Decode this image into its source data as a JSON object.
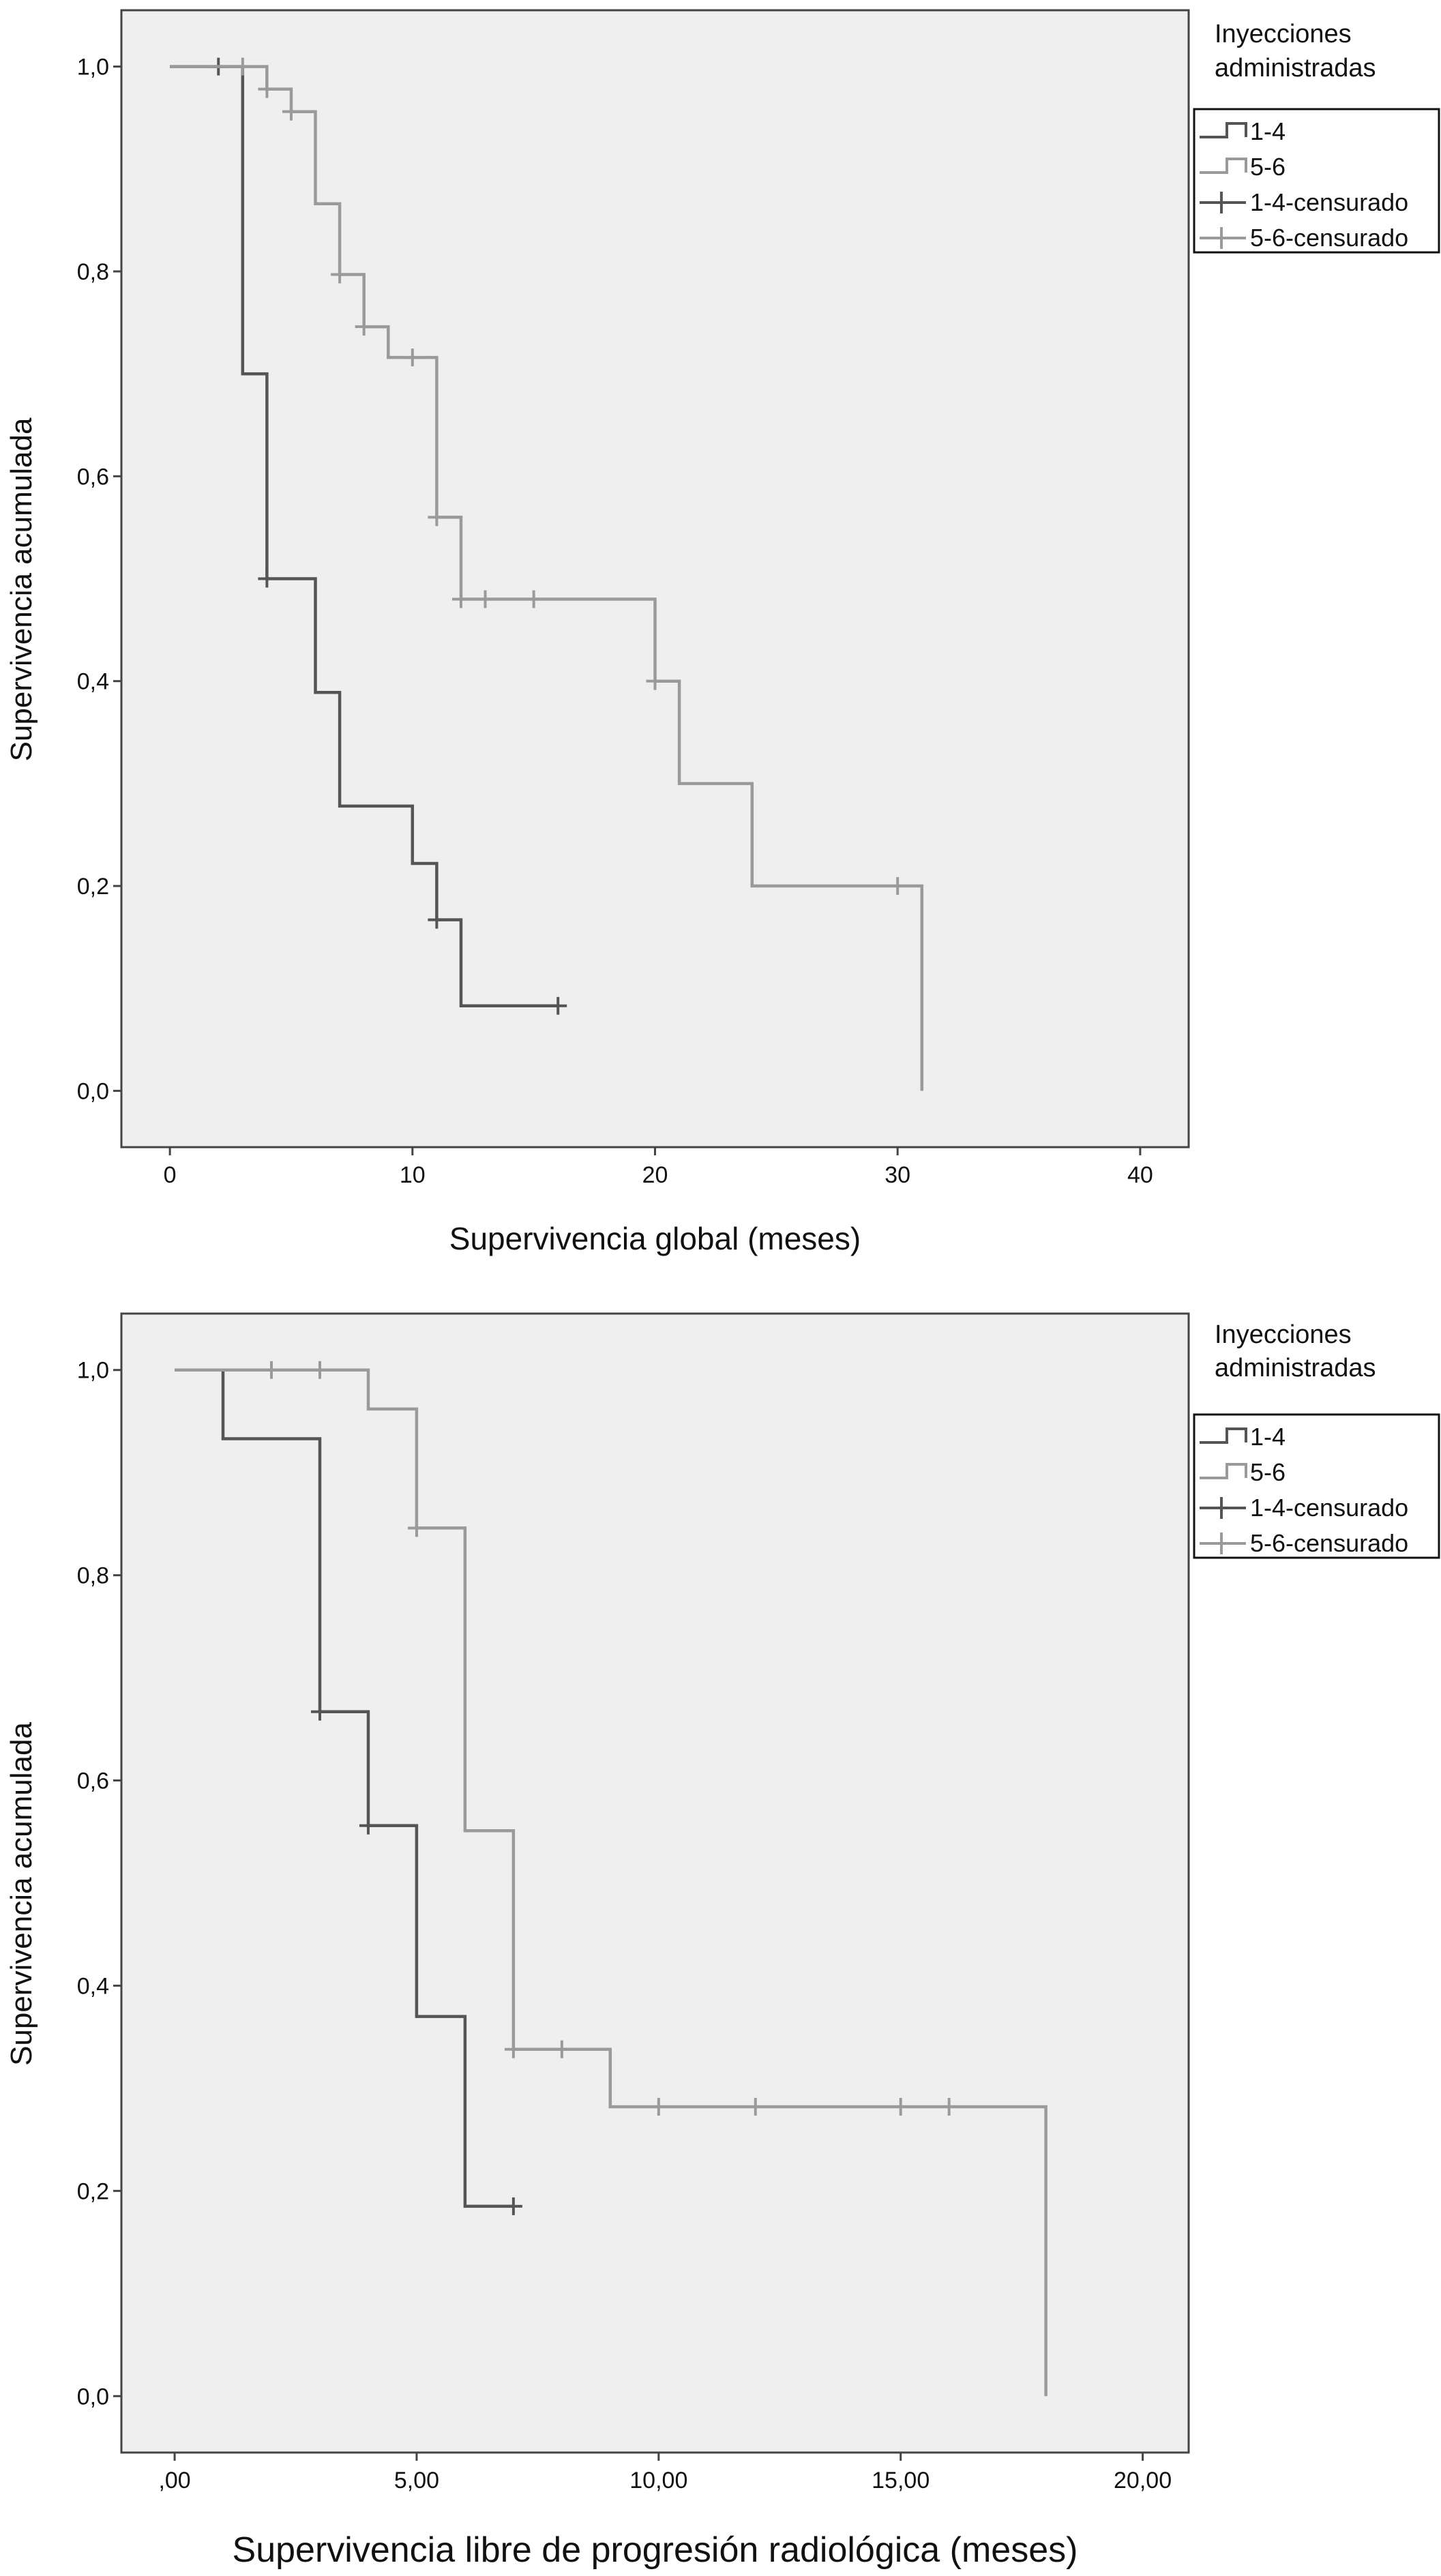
{
  "chart_data": [
    {
      "type": "line",
      "step": true,
      "xlabel": "Supervivencia global (meses)",
      "ylabel": "Supervivencia acumulada",
      "xlim": [
        -2,
        42
      ],
      "ylim": [
        -0.055,
        1.055
      ],
      "xticks": [
        0,
        10,
        20,
        30,
        40
      ],
      "xtick_labels": [
        "0",
        "10",
        "20",
        "30",
        "40"
      ],
      "yticks": [
        0,
        0.2,
        0.4,
        0.6,
        0.8,
        1.0
      ],
      "ytick_labels": [
        "0,0",
        "0,2",
        "0,4",
        "0,6",
        "0,8",
        "1,0"
      ],
      "grid": false,
      "legend_position": "top-right outside",
      "legend_title": "Inyecciones administradas",
      "legend_title_lines": [
        "Inyecciones",
        "administradas"
      ],
      "legend_entries": [
        "1-4",
        "5-6",
        "1-4-censurado",
        "5-6-censurado"
      ],
      "series": [
        {
          "name": "1-4",
          "color": "#555555",
          "x": [
            0,
            3,
            3,
            4,
            4,
            6,
            6,
            7,
            7,
            10,
            10,
            11,
            11,
            12,
            12,
            16
          ],
          "y": [
            1.0,
            1.0,
            0.7,
            0.7,
            0.5,
            0.5,
            0.389,
            0.389,
            0.278,
            0.278,
            0.222,
            0.222,
            0.167,
            0.167,
            0.083,
            0.083
          ],
          "censored_x": [
            2,
            4,
            11,
            16
          ],
          "censored_y": [
            1.0,
            0.5,
            0.167,
            0.083
          ]
        },
        {
          "name": "5-6",
          "color": "#9a9a9a",
          "x": [
            0,
            4,
            4,
            5,
            5,
            6,
            6,
            7,
            7,
            8,
            8,
            9,
            9,
            11,
            11,
            12,
            12,
            20,
            20,
            21,
            21,
            24,
            24,
            31,
            31
          ],
          "y": [
            1.0,
            1.0,
            0.978,
            0.978,
            0.956,
            0.956,
            0.866,
            0.866,
            0.797,
            0.797,
            0.746,
            0.746,
            0.716,
            0.716,
            0.56,
            0.56,
            0.48,
            0.48,
            0.4,
            0.4,
            0.3,
            0.3,
            0.2,
            0.2,
            0.0
          ],
          "censored_x": [
            3,
            4,
            5,
            7,
            8,
            10,
            11,
            12,
            13,
            15,
            20,
            30
          ],
          "censored_y": [
            1.0,
            0.978,
            0.956,
            0.797,
            0.746,
            0.716,
            0.56,
            0.48,
            0.48,
            0.48,
            0.4,
            0.2
          ]
        }
      ]
    },
    {
      "type": "line",
      "step": true,
      "xlabel": "Supervivencia libre de progresión radiológica (meses)",
      "ylabel": "Supervivencia acumulada",
      "xlim": [
        -1.1,
        20.95
      ],
      "ylim": [
        -0.055,
        1.055
      ],
      "xticks": [
        0,
        5,
        10,
        15,
        20
      ],
      "xtick_labels": [
        ",00",
        "5,00",
        "10,00",
        "15,00",
        "20,00"
      ],
      "yticks": [
        0,
        0.2,
        0.4,
        0.6,
        0.8,
        1.0
      ],
      "ytick_labels": [
        "0,0",
        "0,2",
        "0,4",
        "0,6",
        "0,8",
        "1,0"
      ],
      "grid": false,
      "legend_position": "top-right outside",
      "legend_title": "Inyecciones administradas",
      "legend_title_lines": [
        "Inyecciones",
        "administradas"
      ],
      "legend_entries": [
        "1-4",
        "5-6",
        "1-4-censurado",
        "5-6-censurado"
      ],
      "series": [
        {
          "name": "1-4",
          "color": "#555555",
          "x": [
            0,
            1,
            1,
            3,
            3,
            4,
            4,
            5,
            5,
            6,
            6,
            7
          ],
          "y": [
            1.0,
            1.0,
            0.933,
            0.933,
            0.667,
            0.667,
            0.556,
            0.556,
            0.37,
            0.37,
            0.185,
            0.185
          ],
          "censored_x": [
            3,
            4,
            7
          ],
          "censored_y": [
            0.667,
            0.556,
            0.185
          ]
        },
        {
          "name": "5-6",
          "color": "#9a9a9a",
          "x": [
            0,
            4,
            4,
            5,
            5,
            6,
            6,
            7,
            7,
            9,
            9,
            18,
            18
          ],
          "y": [
            1.0,
            1.0,
            0.962,
            0.962,
            0.846,
            0.846,
            0.551,
            0.551,
            0.338,
            0.338,
            0.282,
            0.282,
            0.0
          ],
          "censored_x": [
            2,
            3,
            5,
            7,
            8,
            10,
            12,
            15,
            16
          ],
          "censored_y": [
            1.0,
            1.0,
            0.846,
            0.338,
            0.338,
            0.282,
            0.282,
            0.282,
            0.282
          ]
        }
      ]
    }
  ]
}
